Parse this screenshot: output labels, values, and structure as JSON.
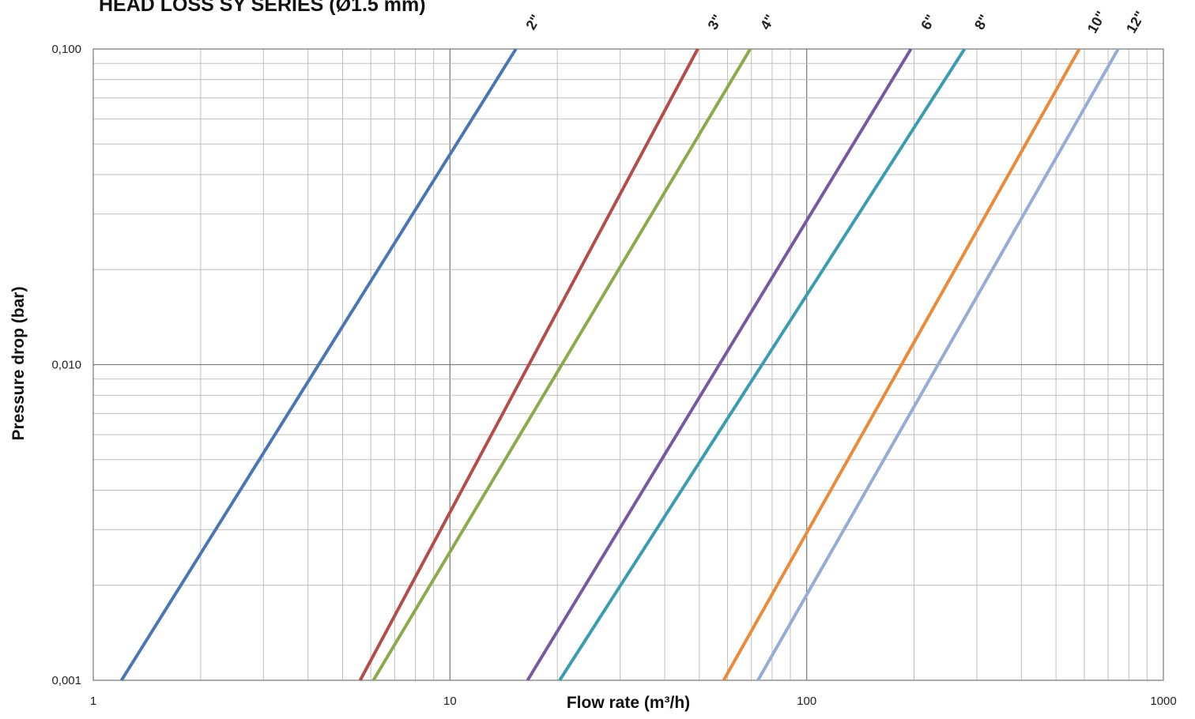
{
  "chart_data": {
    "type": "line",
    "title": "HEAD LOSS SY SERIES (Ø1.5 mm)",
    "xlabel": "Flow rate (m³/h)",
    "ylabel": "Pressure drop (bar)",
    "xscale": "log",
    "yscale": "log",
    "xlim": [
      1,
      1000
    ],
    "ylim": [
      0.001,
      0.1
    ],
    "x_ticks": [
      1,
      10,
      100,
      1000
    ],
    "x_tick_labels": [
      "1",
      "10",
      "100",
      "1000"
    ],
    "y_ticks": [
      0.001,
      0.01,
      0.1
    ],
    "y_tick_labels": [
      "0,001",
      "0,010",
      "0,100"
    ],
    "grid": true,
    "legend": "labels at top of lines",
    "series": [
      {
        "name": "2\"",
        "color": "#4a76b1",
        "x": [
          1.2,
          15.3
        ],
        "y": [
          0.001,
          0.1
        ]
      },
      {
        "name": "3\"",
        "color": "#b34d49",
        "x": [
          5.6,
          49.5
        ],
        "y": [
          0.001,
          0.1
        ]
      },
      {
        "name": "4\"",
        "color": "#8aaa4b",
        "x": [
          6.1,
          69.5
        ],
        "y": [
          0.001,
          0.1
        ]
      },
      {
        "name": "6\"",
        "color": "#7859a0",
        "x": [
          16.5,
          196
        ],
        "y": [
          0.001,
          0.1
        ]
      },
      {
        "name": "8\"",
        "color": "#3a9cb1",
        "x": [
          20.3,
          277
        ],
        "y": [
          0.001,
          0.1
        ]
      },
      {
        "name": "10\"",
        "color": "#ea8a3a",
        "x": [
          58.5,
          581
        ],
        "y": [
          0.001,
          0.1
        ]
      },
      {
        "name": "12\"",
        "color": "#94acd6",
        "x": [
          73,
          747
        ],
        "y": [
          0.001,
          0.1
        ]
      }
    ]
  }
}
